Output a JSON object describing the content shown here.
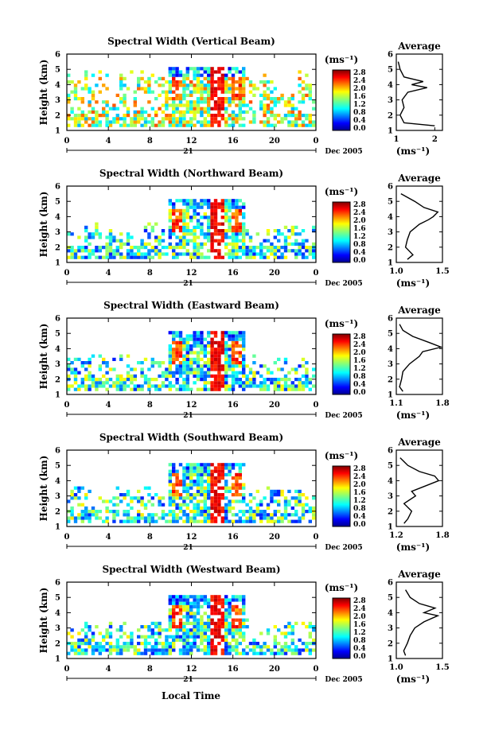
{
  "figure": {
    "xlabel": "Local Time"
  },
  "chart_data": [
    {
      "type": "heatmap",
      "title": "Spectral Width (Vertical Beam)",
      "ylabel": "Height (km)",
      "x_ticks": [
        "0",
        "4",
        "8",
        "12",
        "16",
        "20",
        "0"
      ],
      "date_marker": "21",
      "date_label": "Dec 2005",
      "ylim": [
        1,
        6
      ],
      "y_ticks": [
        "1",
        "2",
        "3",
        "4",
        "5",
        "6"
      ],
      "colorbar": {
        "unit": "(ms⁻¹)",
        "ticks": [
          "0.0",
          "0.4",
          "0.8",
          "1.2",
          "1.6",
          "2.0",
          "2.4",
          "2.8"
        ]
      },
      "average": {
        "title": "Average",
        "xlabel": "(ms⁻¹)",
        "x_ticks": [
          "1",
          "2"
        ],
        "xlim": [
          1,
          2.2
        ],
        "heights": [
          1.3,
          1.5,
          2.0,
          2.5,
          3.0,
          3.5,
          3.8,
          4.0,
          4.2,
          4.5,
          5.0,
          5.5
        ],
        "values": [
          2.0,
          1.2,
          1.1,
          1.2,
          1.15,
          1.3,
          1.8,
          1.4,
          1.7,
          1.2,
          1.1,
          1.05
        ]
      }
    },
    {
      "type": "heatmap",
      "title": "Spectral Width (Northward Beam)",
      "ylabel": "Height (km)",
      "x_ticks": [
        "0",
        "4",
        "8",
        "12",
        "16",
        "20",
        "0"
      ],
      "date_marker": "21",
      "date_label": "Dec 2005",
      "ylim": [
        1,
        6
      ],
      "y_ticks": [
        "1",
        "2",
        "3",
        "4",
        "5",
        "6"
      ],
      "colorbar": {
        "unit": "(ms⁻¹)",
        "ticks": [
          "0.0",
          "0.4",
          "0.8",
          "1.2",
          "1.6",
          "2.0",
          "2.4",
          "2.8"
        ]
      },
      "average": {
        "title": "Average",
        "xlabel": "(ms⁻¹)",
        "x_ticks": [
          "1.0",
          "1.5"
        ],
        "xlim": [
          1.0,
          1.5
        ],
        "heights": [
          1.2,
          1.5,
          2.0,
          2.5,
          3.0,
          3.5,
          3.8,
          4.0,
          4.3,
          4.6,
          5.0,
          5.5
        ],
        "values": [
          1.12,
          1.18,
          1.1,
          1.12,
          1.15,
          1.25,
          1.35,
          1.4,
          1.45,
          1.3,
          1.2,
          1.05
        ]
      }
    },
    {
      "type": "heatmap",
      "title": "Spectral Width (Eastward Beam)",
      "ylabel": "Height (km)",
      "x_ticks": [
        "0",
        "4",
        "8",
        "12",
        "16",
        "20",
        "0"
      ],
      "date_marker": "21",
      "date_label": "Dec 2005",
      "ylim": [
        1,
        6
      ],
      "y_ticks": [
        "1",
        "2",
        "3",
        "4",
        "5",
        "6"
      ],
      "colorbar": {
        "unit": "(ms⁻¹)",
        "ticks": [
          "0.0",
          "0.4",
          "0.8",
          "1.2",
          "1.6",
          "2.0",
          "2.4",
          "2.8"
        ]
      },
      "average": {
        "title": "Average",
        "xlabel": "(ms⁻¹)",
        "x_ticks": [
          "1.1",
          "1.8"
        ],
        "xlim": [
          1.1,
          1.8
        ],
        "heights": [
          1.2,
          1.5,
          2.0,
          2.5,
          3.0,
          3.5,
          3.8,
          4.1,
          4.4,
          4.8,
          5.2,
          5.6
        ],
        "values": [
          1.2,
          1.15,
          1.18,
          1.2,
          1.3,
          1.45,
          1.5,
          1.78,
          1.6,
          1.35,
          1.2,
          1.15
        ]
      }
    },
    {
      "type": "heatmap",
      "title": "Spectral Width (Southward Beam)",
      "ylabel": "Height (km)",
      "x_ticks": [
        "0",
        "4",
        "8",
        "12",
        "16",
        "20",
        "0"
      ],
      "date_marker": "21",
      "date_label": "Dec 2005",
      "ylim": [
        1,
        6
      ],
      "y_ticks": [
        "1",
        "2",
        "3",
        "4",
        "5",
        "6"
      ],
      "colorbar": {
        "unit": "(ms⁻¹)",
        "ticks": [
          "0.0",
          "0.4",
          "0.8",
          "1.2",
          "1.6",
          "2.0",
          "2.4",
          "2.8"
        ]
      },
      "average": {
        "title": "Average",
        "xlabel": "(ms⁻¹)",
        "x_ticks": [
          "1.2",
          "1.8"
        ],
        "xlim": [
          1.2,
          1.8
        ],
        "heights": [
          1.2,
          1.5,
          2.0,
          2.5,
          3.0,
          3.3,
          3.7,
          4.0,
          4.3,
          4.6,
          5.0,
          5.5
        ],
        "values": [
          1.3,
          1.35,
          1.4,
          1.3,
          1.45,
          1.4,
          1.6,
          1.75,
          1.7,
          1.5,
          1.35,
          1.25
        ]
      }
    },
    {
      "type": "heatmap",
      "title": "Spectral Width (Westward Beam)",
      "ylabel": "Height (km)",
      "x_ticks": [
        "0",
        "4",
        "8",
        "12",
        "16",
        "20",
        "0"
      ],
      "date_marker": "21",
      "date_label": "Dec 2005",
      "ylim": [
        1,
        6
      ],
      "y_ticks": [
        "1",
        "2",
        "3",
        "4",
        "5",
        "6"
      ],
      "colorbar": {
        "unit": "(ms⁻¹)",
        "ticks": [
          "0.0",
          "0.4",
          "0.8",
          "1.2",
          "1.6",
          "2.0",
          "2.4",
          "2.8"
        ]
      },
      "average": {
        "title": "Average",
        "xlabel": "(ms⁻¹)",
        "x_ticks": [
          "1.0",
          "1.5"
        ],
        "xlim": [
          1.0,
          1.5
        ],
        "heights": [
          1.2,
          1.5,
          2.0,
          2.5,
          3.0,
          3.4,
          3.8,
          4.0,
          4.3,
          4.6,
          5.0,
          5.5
        ],
        "values": [
          1.1,
          1.08,
          1.12,
          1.15,
          1.2,
          1.3,
          1.45,
          1.3,
          1.42,
          1.25,
          1.15,
          1.1
        ]
      }
    }
  ]
}
